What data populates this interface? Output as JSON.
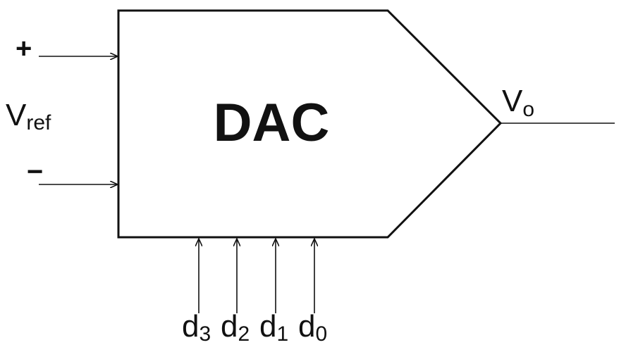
{
  "diagram": {
    "block_label": "DAC",
    "ref_input": {
      "plus_label": "+",
      "minus_label": "−",
      "symbol": "V",
      "subscript": "ref"
    },
    "output": {
      "symbol": "V",
      "subscript": "o"
    },
    "digital_inputs": [
      {
        "symbol": "d",
        "subscript": "3"
      },
      {
        "symbol": "d",
        "subscript": "2"
      },
      {
        "symbol": "d",
        "subscript": "1"
      },
      {
        "symbol": "d",
        "subscript": "0"
      }
    ]
  }
}
